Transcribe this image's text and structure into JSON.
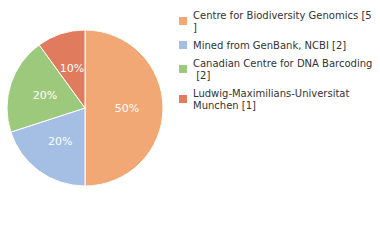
{
  "chart_data": {
    "type": "pie",
    "categories": [
      "Centre for Biodiversity Genomics [5]",
      "Mined from GenBank, NCBI [2]",
      "Canadian Centre for DNA Barcoding [2]",
      "Ludwig-Maximilians-Universitat Munchen [1]"
    ],
    "values": [
      50,
      20,
      20,
      10
    ],
    "value_labels": [
      "50%",
      "20%",
      "20%",
      "10%"
    ],
    "colors": [
      "#f1a874",
      "#a4bee4",
      "#9dc97c",
      "#e17b5e"
    ],
    "data_labels": true,
    "legend": "top-right"
  }
}
